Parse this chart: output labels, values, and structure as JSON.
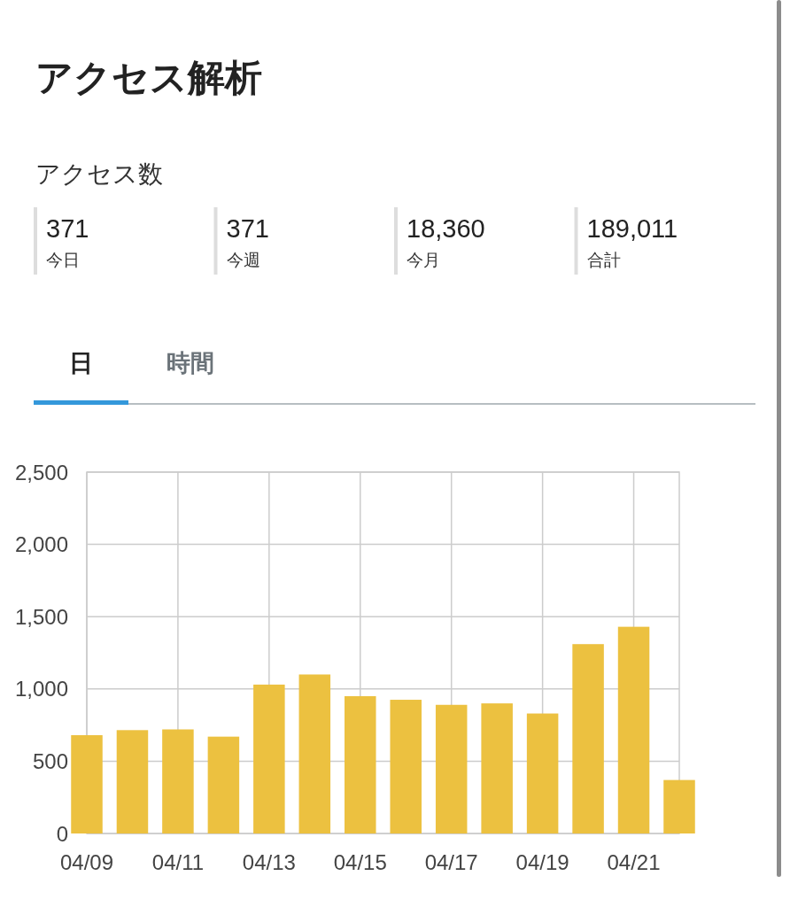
{
  "chart_data": [
    {
      "type": "other",
      "title": "アクセス解析",
      "subtitle": "アクセス数",
      "annotations": [
        "371",
        "今日",
        "371",
        "今週",
        "18,360",
        "今月",
        "189,011",
        "合計",
        "日",
        "時間"
      ]
    },
    {
      "type": "bar",
      "x": [
        "--04-09",
        "--04-10",
        "--04-11",
        "--04-12",
        "--04-13",
        "--04-14",
        "--04-15",
        "--04-16",
        "--04-17",
        "--04-18",
        "--04-19",
        "--04-20",
        "--04-21",
        "--04-22"
      ],
      "values": [
        680,
        715,
        720,
        670,
        1030,
        1100,
        950,
        925,
        890,
        900,
        830,
        1310,
        1430,
        370
      ],
      "color": "#ecc140",
      "xlim": [
        "--04-09",
        "--04-22"
      ],
      "xticks": [
        {
          "value": "--04-09",
          "label": "04/09"
        },
        {
          "value": "--04-11",
          "label": "04/11"
        },
        {
          "value": "--04-13",
          "label": "04/13"
        },
        {
          "value": "--04-15",
          "label": "04/15"
        },
        {
          "value": "--04-17",
          "label": "04/17"
        },
        {
          "value": "--04-19",
          "label": "04/19"
        },
        {
          "value": "--04-21",
          "label": "04/21"
        }
      ],
      "ylim": [
        0,
        2500
      ],
      "yticks": [
        0,
        500,
        {
          "value": 1000,
          "label": "1,000"
        },
        {
          "value": 1500,
          "label": "1,500"
        },
        {
          "value": 2000,
          "label": "2,000"
        },
        {
          "value": 2500,
          "label": "2,500"
        }
      ],
      "grid": true
    }
  ]
}
